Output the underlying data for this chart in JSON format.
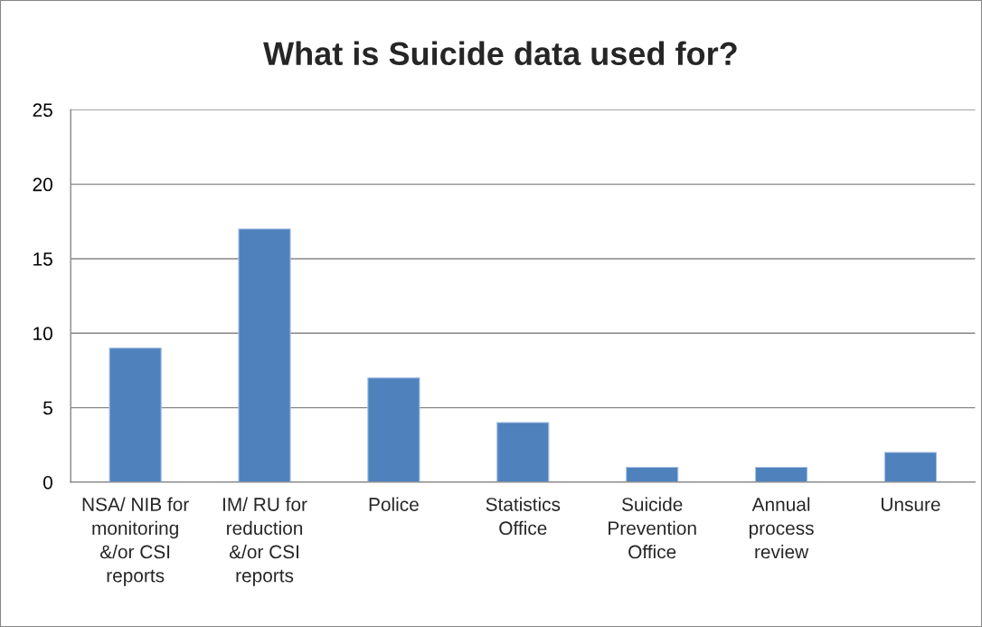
{
  "chart_data": {
    "type": "bar",
    "title": "What is Suicide data used for?",
    "categories": [
      "NSA/ NIB for monitoring &/or CSI reports",
      "IM/ RU for reduction &/or CSI reports",
      "Police",
      "Statistics Office",
      "Suicide Prevention Office",
      "Annual process review",
      "Unsure"
    ],
    "values": [
      9,
      17,
      7,
      4,
      1,
      1,
      2
    ],
    "color": "#4f81bd",
    "ylim": [
      0,
      25
    ],
    "yticks": [
      0,
      5,
      10,
      15,
      20,
      25
    ],
    "grid": "y"
  }
}
